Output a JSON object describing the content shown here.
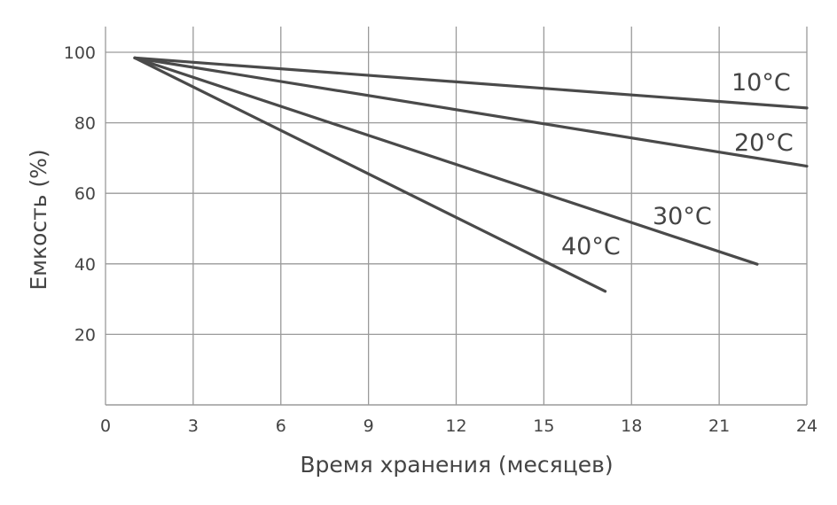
{
  "chart_data": {
    "type": "line",
    "title": "",
    "xlabel": "Время хранения (месяцев)",
    "ylabel": "Емкость (%)",
    "xlim": [
      0,
      24
    ],
    "ylim": [
      0,
      107
    ],
    "x_ticks": [
      0,
      3,
      6,
      9,
      12,
      15,
      18,
      21,
      24
    ],
    "y_ticks": [
      20,
      40,
      60,
      80,
      100
    ],
    "grid": true,
    "series": [
      {
        "name": "10°C",
        "x": [
          1,
          24
        ],
        "y": [
          98.4,
          84.2
        ]
      },
      {
        "name": "20°C",
        "x": [
          1,
          24
        ],
        "y": [
          98.4,
          67.7
        ]
      },
      {
        "name": "30°C",
        "x": [
          1,
          22.3
        ],
        "y": [
          98.4,
          39.9
        ]
      },
      {
        "name": "40°C",
        "x": [
          1,
          17.1
        ],
        "y": [
          98.4,
          32.2
        ]
      }
    ],
    "colors": {
      "line": "#4a4a4a",
      "grid": "#9a9a9a",
      "text": "#444444"
    }
  }
}
